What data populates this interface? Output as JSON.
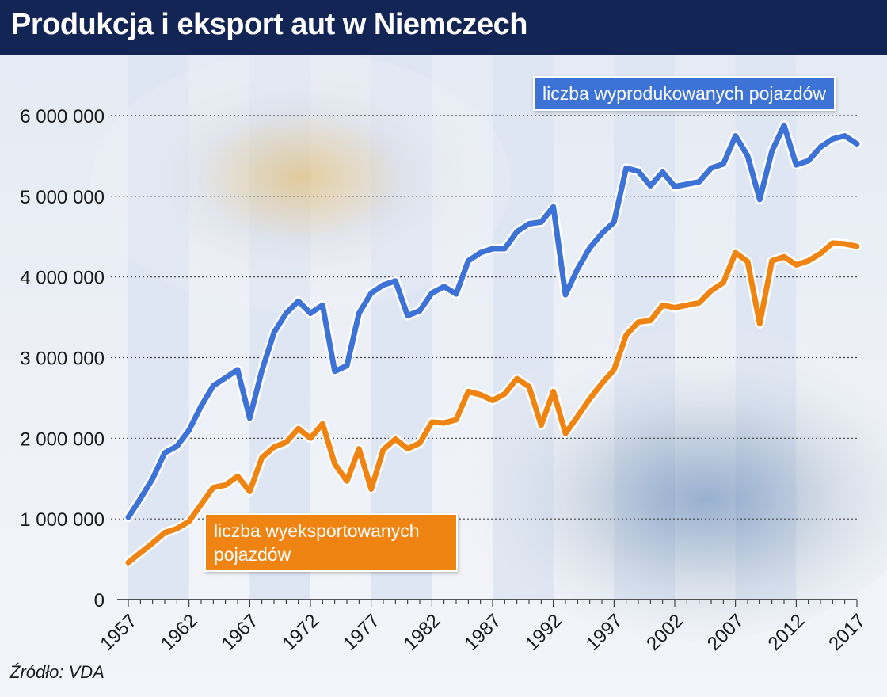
{
  "header": {
    "title": "Produkcja i eksport aut w Niemczech"
  },
  "source": "Źródło: VDA",
  "colors": {
    "header_bg": "#122555",
    "production": "#3d72d6",
    "export": "#ef8413",
    "stripe": "#dfe6f3",
    "background": "#e8ecf4"
  },
  "chart_data": {
    "type": "line",
    "title": "Produkcja i eksport aut w Niemczech",
    "xlabel": "",
    "ylabel": "",
    "x_range": [
      1957,
      2017
    ],
    "ylim": [
      0,
      6000000
    ],
    "yticks": [
      0,
      1000000,
      2000000,
      3000000,
      4000000,
      5000000,
      6000000
    ],
    "ytick_labels": [
      "0",
      "1 000 000",
      "2 000 000",
      "3 000 000",
      "4 000 000",
      "5 000 000",
      "6 000 000"
    ],
    "xticks": [
      1957,
      1962,
      1967,
      1972,
      1977,
      1982,
      1987,
      1992,
      1997,
      2002,
      2007,
      2012,
      2017
    ],
    "xtick_labels": [
      "1957",
      "1962",
      "1967",
      "1972",
      "1977",
      "1982",
      "1987",
      "1992",
      "1997",
      "2002",
      "2007",
      "2012",
      "2017"
    ],
    "grid": "horizontal dotted",
    "legend": "direct labels",
    "x": [
      1957,
      1958,
      1959,
      1960,
      1961,
      1962,
      1963,
      1964,
      1965,
      1966,
      1967,
      1968,
      1969,
      1970,
      1971,
      1972,
      1973,
      1974,
      1975,
      1976,
      1977,
      1978,
      1979,
      1980,
      1981,
      1982,
      1983,
      1984,
      1985,
      1986,
      1987,
      1988,
      1989,
      1990,
      1991,
      1992,
      1993,
      1994,
      1995,
      1996,
      1997,
      1998,
      1999,
      2000,
      2001,
      2002,
      2003,
      2004,
      2005,
      2006,
      2007,
      2008,
      2009,
      2010,
      2011,
      2012,
      2013,
      2014,
      2015,
      2016,
      2017
    ],
    "series": [
      {
        "name": "liczba wyprodukowanych pojazdów",
        "values": [
          1020000,
          1250000,
          1500000,
          1820000,
          1900000,
          2100000,
          2400000,
          2650000,
          2750000,
          2850000,
          2250000,
          2840000,
          3310000,
          3550000,
          3700000,
          3550000,
          3650000,
          2830000,
          2900000,
          3550000,
          3800000,
          3900000,
          3950000,
          3520000,
          3580000,
          3800000,
          3880000,
          3790000,
          4200000,
          4300000,
          4350000,
          4350000,
          4560000,
          4660000,
          4680000,
          4870000,
          3780000,
          4100000,
          4360000,
          4540000,
          4680000,
          5350000,
          5310000,
          5130000,
          5300000,
          5120000,
          5150000,
          5180000,
          5350000,
          5400000,
          5750000,
          5500000,
          4960000,
          5560000,
          5880000,
          5390000,
          5440000,
          5610000,
          5710000,
          5750000,
          5650000
        ]
      },
      {
        "name": "liczba wyeksportowanych pojazdów",
        "values": [
          460000,
          580000,
          700000,
          830000,
          880000,
          970000,
          1180000,
          1390000,
          1420000,
          1530000,
          1340000,
          1760000,
          1890000,
          1950000,
          2120000,
          2000000,
          2180000,
          1680000,
          1470000,
          1870000,
          1370000,
          1860000,
          1990000,
          1870000,
          1940000,
          2200000,
          2190000,
          2230000,
          2580000,
          2540000,
          2470000,
          2550000,
          2740000,
          2640000,
          2160000,
          2580000,
          2060000,
          2270000,
          2490000,
          2680000,
          2850000,
          3280000,
          3440000,
          3460000,
          3650000,
          3620000,
          3650000,
          3680000,
          3830000,
          3930000,
          4300000,
          4190000,
          3420000,
          4200000,
          4250000,
          4150000,
          4200000,
          4290000,
          4420000,
          4410000,
          4380000
        ]
      }
    ]
  }
}
